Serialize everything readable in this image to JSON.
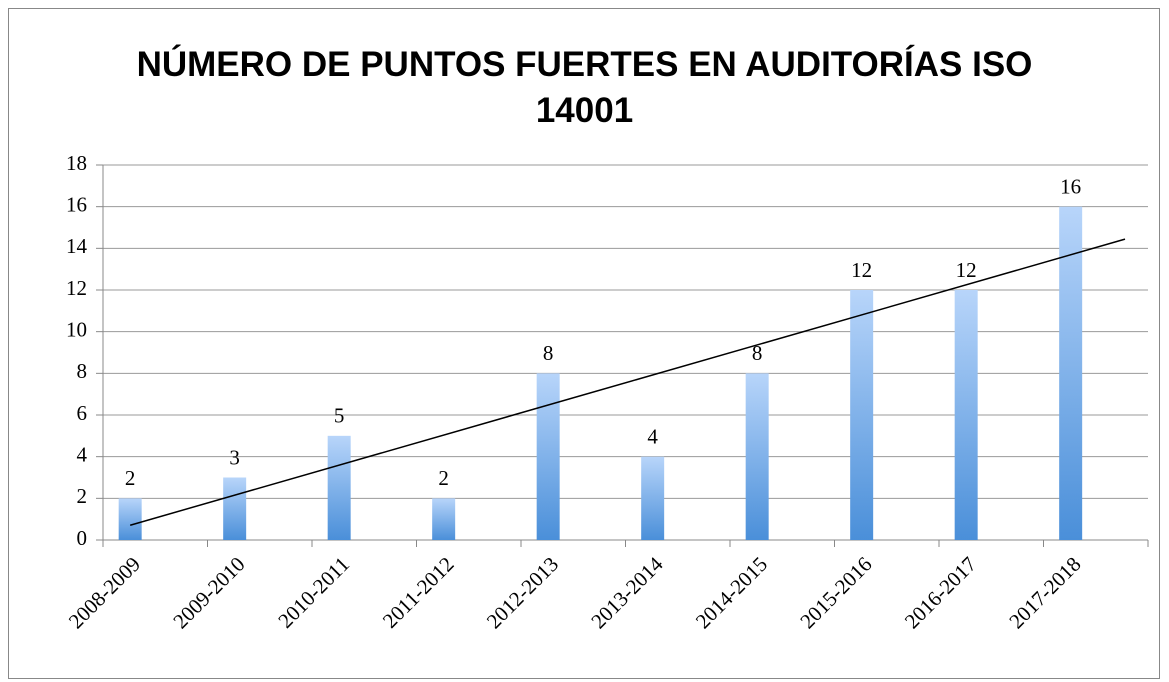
{
  "chart_data": {
    "type": "bar",
    "title": "NÚMERO DE PUNTOS FUERTES EN AUDITORÍAS ISO 14001",
    "categories": [
      "2008-2009",
      "2009-2010",
      "2010-2011",
      "2011-2012",
      "2012-2013",
      "2013-2014",
      "2014-2015",
      "2015-2016",
      "2016-2017",
      "2017-2018"
    ],
    "values": [
      2,
      3,
      5,
      2,
      8,
      4,
      8,
      12,
      12,
      16
    ],
    "color": "#4a8fd9",
    "ylim": [
      0,
      18
    ],
    "yticks": [
      0,
      2,
      4,
      6,
      8,
      10,
      12,
      14,
      16,
      18
    ],
    "grid": true,
    "trendline": "linear"
  }
}
